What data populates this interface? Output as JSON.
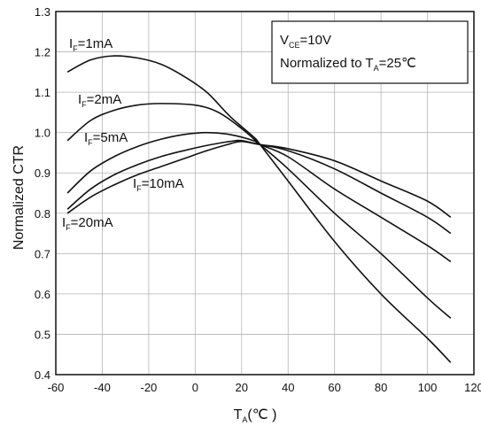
{
  "chart_data": {
    "type": "line",
    "xlabel": {
      "main": "T",
      "sub": "A",
      "unit": "(℃ )"
    },
    "ylabel": "Normalized CTR",
    "xlim": [
      -60,
      120
    ],
    "ylim": [
      0.4,
      1.3
    ],
    "x_ticks": [
      -60,
      -40,
      -20,
      0,
      20,
      40,
      60,
      80,
      100,
      120
    ],
    "y_ticks": [
      "0.4",
      "0.5",
      "0.6",
      "0.7",
      "0.8",
      "0.9",
      "1.0",
      "1.1",
      "1.2",
      "1.3"
    ],
    "grid": true,
    "legend_box": {
      "line1": {
        "main": "V",
        "sub": "CE",
        "rest": "=10V"
      },
      "line2": {
        "main": "Normalized to T",
        "sub": "A",
        "rest": "=25℃"
      }
    },
    "series": [
      {
        "label": {
          "main": "I",
          "sub": "F",
          "rest": "=1mA"
        },
        "x": [
          -55,
          -45,
          -35,
          -25,
          -15,
          -5,
          5,
          15,
          25,
          28,
          40,
          60,
          80,
          100,
          110
        ],
        "y": [
          1.15,
          1.18,
          1.19,
          1.185,
          1.17,
          1.14,
          1.1,
          1.04,
          0.99,
          0.97,
          0.88,
          0.73,
          0.6,
          0.49,
          0.43
        ]
      },
      {
        "label": {
          "main": "I",
          "sub": "F",
          "rest": "=2mA"
        },
        "x": [
          -55,
          -45,
          -35,
          -25,
          -15,
          0,
          10,
          20,
          28,
          40,
          60,
          80,
          100,
          110
        ],
        "y": [
          0.98,
          1.03,
          1.055,
          1.068,
          1.072,
          1.068,
          1.05,
          1.01,
          0.97,
          0.91,
          0.8,
          0.7,
          0.59,
          0.54
        ]
      },
      {
        "label": {
          "main": "I",
          "sub": "F",
          "rest": "=5mA"
        },
        "x": [
          -55,
          -45,
          -35,
          -25,
          -15,
          -5,
          5,
          15,
          25,
          28,
          40,
          60,
          80,
          100,
          110
        ],
        "y": [
          0.85,
          0.905,
          0.94,
          0.965,
          0.983,
          0.995,
          1.0,
          0.995,
          0.98,
          0.97,
          0.94,
          0.86,
          0.79,
          0.72,
          0.68
        ]
      },
      {
        "label": {
          "main": "I",
          "sub": "F",
          "rest": "=10mA"
        },
        "x": [
          -55,
          -45,
          -35,
          -25,
          -15,
          -5,
          5,
          15,
          20,
          28,
          40,
          60,
          80,
          100,
          110
        ],
        "y": [
          0.81,
          0.86,
          0.895,
          0.92,
          0.94,
          0.955,
          0.968,
          0.978,
          0.98,
          0.97,
          0.955,
          0.91,
          0.85,
          0.79,
          0.75
        ]
      },
      {
        "label": {
          "main": "I",
          "sub": "F",
          "rest": "=20mA"
        },
        "x": [
          -55,
          -45,
          -35,
          -25,
          -15,
          -5,
          5,
          15,
          20,
          28,
          40,
          60,
          80,
          100,
          110
        ],
        "y": [
          0.8,
          0.84,
          0.87,
          0.895,
          0.915,
          0.935,
          0.955,
          0.972,
          0.978,
          0.97,
          0.96,
          0.93,
          0.88,
          0.83,
          0.79
        ]
      }
    ]
  }
}
